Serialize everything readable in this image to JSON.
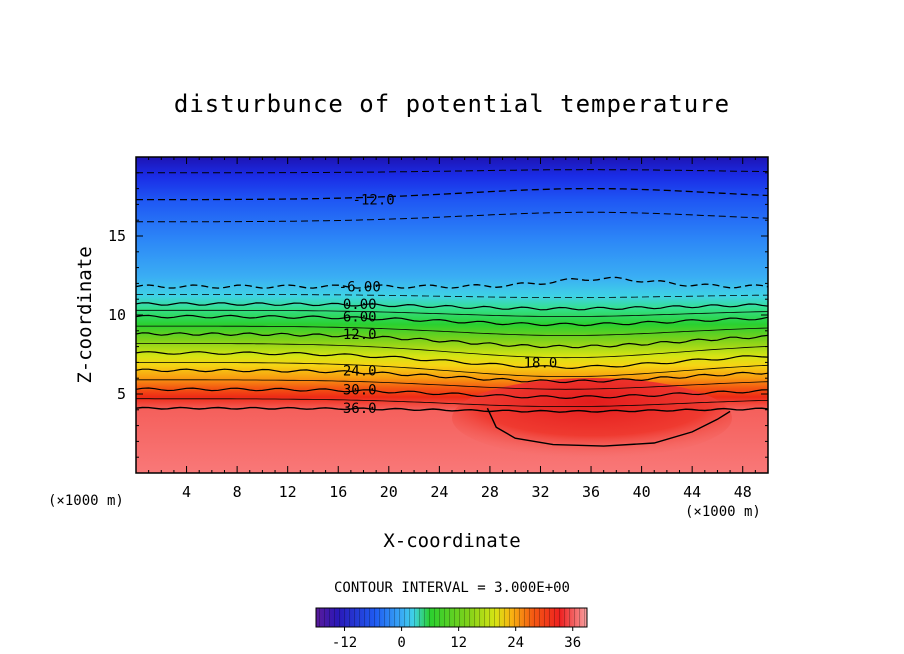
{
  "chart_data": {
    "type": "heatmap",
    "title": "disturbunce of potential temperature",
    "xlabel": "X-coordinate",
    "ylabel": "Z-coordinate",
    "x_unit": "(×1000 m)",
    "z_unit": "(×1000 m)",
    "xlim": [
      0,
      50
    ],
    "ylim": [
      0,
      20
    ],
    "x_ticks": [
      4,
      8,
      12,
      16,
      20,
      24,
      28,
      32,
      36,
      40,
      44,
      48
    ],
    "y_ticks": [
      5,
      10,
      15
    ],
    "contour_interval_text": "CONTOUR INTERVAL = 3.000E+00",
    "colorbar": {
      "vmin": -18,
      "vmax": 39,
      "ticks": [
        -12,
        0,
        12,
        24,
        36
      ],
      "tick_labels": [
        "-12",
        "0",
        "12",
        "24",
        "36"
      ]
    },
    "contour_labels": [
      {
        "text": "-12.0",
        "x": 18.8,
        "z": 17.3
      },
      {
        "text": "-6.00",
        "x": 17.7,
        "z": 11.8
      },
      {
        "text": "0.00",
        "x": 17.7,
        "z": 10.7
      },
      {
        "text": "6.00",
        "x": 17.7,
        "z": 9.9
      },
      {
        "text": "12.0",
        "x": 17.7,
        "z": 8.8
      },
      {
        "text": "18.0",
        "x": 32.0,
        "z": 7.0
      },
      {
        "text": "24.0",
        "x": 17.7,
        "z": 6.5
      },
      {
        "text": "30.0",
        "x": 17.7,
        "z": 5.3
      },
      {
        "text": "36.0",
        "x": 17.7,
        "z": 4.1
      }
    ]
  }
}
